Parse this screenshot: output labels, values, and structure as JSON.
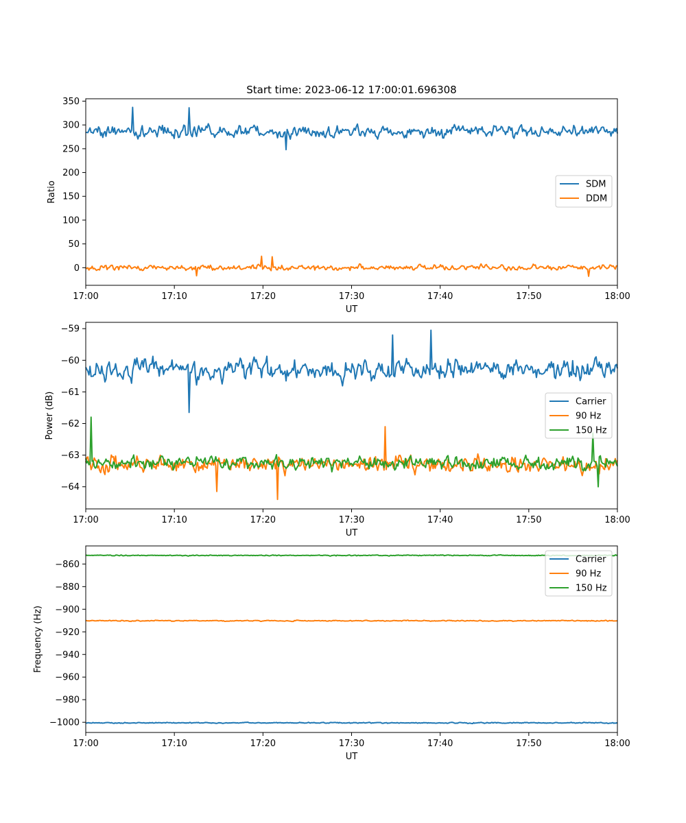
{
  "figure": {
    "title": "Start time: 2023-06-12 17:00:01.696308"
  },
  "chart_data": [
    {
      "type": "line",
      "xlabel": "UT",
      "ylabel": "Ratio",
      "xlim": [
        "17:00",
        "18:00"
      ],
      "ylim": [
        -37,
        355
      ],
      "x_ticks": [
        "17:00",
        "17:10",
        "17:20",
        "17:30",
        "17:40",
        "17:50",
        "18:00"
      ],
      "y_ticks": [
        0,
        50,
        100,
        150,
        200,
        250,
        300,
        350
      ],
      "y_tick_labels": [
        "0",
        "50",
        "100",
        "150",
        "200",
        "250",
        "300",
        "350"
      ],
      "legend_position": "center-right",
      "series": [
        {
          "name": "SDM",
          "color": "#1f77b4",
          "mean": 286,
          "amplitude": 18,
          "spikes": [
            [
              5.3,
              337
            ],
            [
              11.7,
              336
            ],
            [
              22.6,
              248
            ]
          ]
        },
        {
          "name": "DDM",
          "color": "#ff7f0e",
          "mean": 0,
          "amplitude": 8,
          "spikes": [
            [
              19.8,
              24
            ],
            [
              21.1,
              23
            ],
            [
              56.8,
              -18
            ],
            [
              12.5,
              -17
            ]
          ]
        }
      ]
    },
    {
      "type": "line",
      "xlabel": "UT",
      "ylabel": "Power (dB)",
      "xlim": [
        "17:00",
        "18:00"
      ],
      "ylim": [
        -64.7,
        -58.8
      ],
      "x_ticks": [
        "17:00",
        "17:10",
        "17:20",
        "17:30",
        "17:40",
        "17:50",
        "18:00"
      ],
      "y_ticks": [
        -64,
        -63,
        -62,
        -61,
        -60,
        -59
      ],
      "y_tick_labels": [
        "−64",
        "−63",
        "−62",
        "−61",
        "−60",
        "−59"
      ],
      "legend_position": "center-right",
      "series": [
        {
          "name": "Carrier",
          "color": "#1f77b4",
          "mean": -60.3,
          "amplitude": 0.45,
          "spikes": [
            [
              39.0,
              -59.05
            ],
            [
              34.6,
              -59.2
            ],
            [
              11.7,
              -61.65
            ]
          ]
        },
        {
          "name": "90 Hz",
          "color": "#ff7f0e",
          "mean": -63.3,
          "amplitude": 0.35,
          "spikes": [
            [
              33.8,
              -62.1
            ],
            [
              21.6,
              -64.4
            ],
            [
              14.8,
              -64.15
            ]
          ]
        },
        {
          "name": "150 Hz",
          "color": "#2ca02c",
          "mean": -63.25,
          "amplitude": 0.3,
          "spikes": [
            [
              0.6,
              -61.8
            ],
            [
              57.2,
              -62.3
            ],
            [
              57.8,
              -64.0
            ]
          ]
        }
      ]
    },
    {
      "type": "line",
      "xlabel": "UT",
      "ylabel": "Frequency (Hz)",
      "xlim": [
        "17:00",
        "18:00"
      ],
      "ylim": [
        -1009,
        -844
      ],
      "x_ticks": [
        "17:00",
        "17:10",
        "17:20",
        "17:30",
        "17:40",
        "17:50",
        "18:00"
      ],
      "y_ticks": [
        -1000,
        -980,
        -960,
        -940,
        -920,
        -900,
        -880,
        -860
      ],
      "y_tick_labels": [
        "−1000",
        "−980",
        "−960",
        "−940",
        "−920",
        "−900",
        "−880",
        "−860"
      ],
      "legend_position": "upper-right",
      "series": [
        {
          "name": "Carrier",
          "color": "#1f77b4",
          "mean": -1000.5,
          "amplitude": 0.6,
          "spikes": []
        },
        {
          "name": "90 Hz",
          "color": "#ff7f0e",
          "mean": -910.2,
          "amplitude": 0.6,
          "spikes": []
        },
        {
          "name": "150 Hz",
          "color": "#2ca02c",
          "mean": -852.4,
          "amplitude": 0.6,
          "spikes": []
        }
      ]
    }
  ]
}
